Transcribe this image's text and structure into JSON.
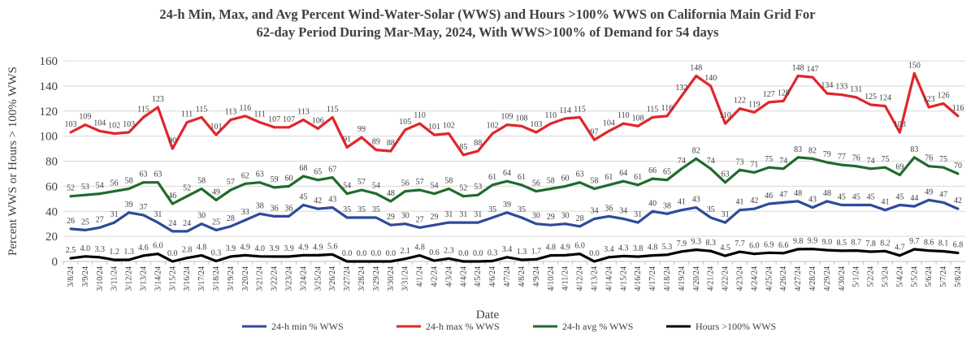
{
  "chart_data": {
    "type": "line",
    "title_line1": "24-h Min, Max, and Avg Percent Wind-Water-Solar (WWS) and Hours >100% WWS on California Main Grid For",
    "title_line2": "62-day Period During Mar-May, 2024, With WWS>100% of Demand for 54 days",
    "xlabel": "Date",
    "ylabel": "Percent WWS or Hours > 100% WWS",
    "ylim": [
      0,
      160
    ],
    "yticks": [
      "0",
      "20",
      "40",
      "60",
      "80",
      "100",
      "120",
      "140",
      "160"
    ],
    "grid": true,
    "legend_position": "bottom",
    "categories": [
      "3/8/24",
      "3/9/24",
      "3/10/24",
      "3/11/24",
      "3/12/24",
      "3/13/24",
      "3/14/24",
      "3/15/24",
      "3/16/24",
      "3/17/24",
      "3/18/24",
      "3/19/24",
      "3/20/24",
      "3/21/24",
      "3/22/24",
      "3/23/24",
      "3/24/24",
      "3/25/24",
      "3/26/24",
      "3/27/24",
      "3/28/24",
      "3/29/24",
      "3/30/24",
      "3/31/24",
      "4/1/24",
      "4/2/24",
      "4/3/24",
      "4/4/24",
      "4/5/24",
      "4/6/24",
      "4/7/24",
      "4/8/24",
      "4/9/24",
      "4/10/24",
      "4/11/24",
      "4/12/24",
      "4/13/24",
      "4/14/24",
      "4/15/24",
      "4/16/24",
      "4/17/24",
      "4/18/24",
      "4/19/24",
      "4/20/24",
      "4/21/24",
      "4/22/24",
      "4/23/24",
      "4/24/24",
      "4/25/24",
      "4/26/24",
      "4/27/24",
      "4/28/24",
      "4/29/24",
      "4/30/24",
      "5/1/24",
      "5/2/24",
      "5/3/24",
      "5/4/24",
      "5/5/24",
      "5/6/24",
      "5/7/24",
      "5/8/24"
    ],
    "series": [
      {
        "name": "24-h min % WWS",
        "color": "#2f4a9a",
        "values": [
          26,
          25,
          27,
          31,
          39,
          37,
          31,
          24,
          24,
          30,
          25,
          28,
          33,
          38,
          36,
          36,
          45,
          42,
          43,
          35,
          35,
          35,
          29,
          30,
          27,
          29,
          31,
          31,
          31,
          35,
          39,
          35,
          30,
          29,
          30,
          28,
          34,
          36,
          34,
          31,
          40,
          38,
          41,
          43,
          35,
          31,
          41,
          42,
          46,
          47,
          48,
          43,
          48,
          45,
          45,
          45,
          41,
          45,
          44,
          49,
          47,
          42
        ],
        "labels": [
          "26",
          "25",
          "27",
          "31",
          "39",
          "37",
          "31",
          "24",
          "24",
          "30",
          "25",
          "28",
          "33",
          "38",
          "36",
          "36",
          "45",
          "42",
          "43",
          "35",
          "35",
          "35",
          "29",
          "30",
          "27",
          "29",
          "31",
          "31",
          "31",
          "35",
          "39",
          "35",
          "30",
          "29",
          "30",
          "28",
          "34",
          "36",
          "34",
          "31",
          "40",
          "38",
          "41",
          "43",
          "35",
          "31",
          "41",
          "42",
          "46",
          "47",
          "48",
          "43",
          "48",
          "45",
          "45",
          "45",
          "41",
          "45",
          "44",
          "49",
          "47",
          "42"
        ]
      },
      {
        "name": "24-h max % WWS",
        "color": "#e0262b",
        "values": [
          103,
          109,
          104,
          102,
          103,
          115,
          123,
          90,
          111,
          115,
          101,
          113,
          116,
          111,
          107,
          107,
          113,
          106,
          115,
          91,
          99,
          89,
          88,
          105,
          110,
          101,
          102,
          85,
          88,
          102,
          109,
          108,
          103,
          110,
          114,
          115,
          97,
          104,
          110,
          108,
          115,
          116,
          132,
          148,
          140,
          110,
          122,
          119,
          127,
          128,
          148,
          147,
          134,
          133,
          131,
          125,
          124,
          103,
          150,
          123,
          126,
          116
        ],
        "labels": [
          "103",
          "109",
          "104",
          "102",
          "103",
          "115",
          "123",
          "90",
          "111",
          "115",
          "101",
          "113",
          "116",
          "111",
          "107",
          "107",
          "113",
          "106",
          "115",
          "91",
          "99",
          "89",
          "88",
          "105",
          "110",
          "101",
          "102",
          "85",
          "88",
          "102",
          "109",
          "108",
          "103",
          "110",
          "114",
          "115",
          "97",
          "104",
          "110",
          "108",
          "115",
          "116",
          "132",
          "148",
          "140",
          "110",
          "122",
          "119",
          "127",
          "128",
          "148",
          "147",
          "134",
          "133",
          "131",
          "125",
          "124",
          "103",
          "150",
          "123",
          "126",
          "116"
        ]
      },
      {
        "name": "24-h avg % WWS",
        "color": "#1f6b2d",
        "values": [
          52,
          53,
          54,
          56,
          58,
          63,
          63,
          46,
          52,
          58,
          49,
          57,
          62,
          63,
          59,
          60,
          68,
          65,
          67,
          54,
          57,
          54,
          48,
          56,
          57,
          54,
          58,
          52,
          53,
          61,
          64,
          61,
          56,
          58,
          60,
          63,
          58,
          61,
          64,
          61,
          66,
          65,
          74,
          82,
          74,
          63,
          73,
          71,
          75,
          74,
          83,
          82,
          79,
          77,
          76,
          74,
          75,
          69,
          83,
          76,
          75,
          70
        ],
        "labels": [
          "52",
          "53",
          "54",
          "56",
          "58",
          "63",
          "63",
          "46",
          "52",
          "58",
          "49",
          "57",
          "62",
          "63",
          "59",
          "60",
          "68",
          "65",
          "67",
          "54",
          "57",
          "54",
          "48",
          "56",
          "57",
          "54",
          "58",
          "52",
          "53",
          "61",
          "64",
          "61",
          "56",
          "58",
          "60",
          "63",
          "58",
          "61",
          "64",
          "61",
          "66",
          "65",
          "74",
          "82",
          "74",
          "63",
          "73",
          "71",
          "75",
          "74",
          "83",
          "82",
          "79",
          "77",
          "76",
          "74",
          "75",
          "69",
          "83",
          "76",
          "75",
          "70"
        ]
      },
      {
        "name": "Hours >100% WWS",
        "color": "#000000",
        "values": [
          2.5,
          4.0,
          3.3,
          1.2,
          1.3,
          4.6,
          6.0,
          0.0,
          2.8,
          4.8,
          0.3,
          3.9,
          4.9,
          4.0,
          3.9,
          3.9,
          4.9,
          4.9,
          5.6,
          0.0,
          0.0,
          0.0,
          0.0,
          2.1,
          4.8,
          0.6,
          2.3,
          0.0,
          0.0,
          0.3,
          3.4,
          1.3,
          1.7,
          4.8,
          4.9,
          6.0,
          0.0,
          3.4,
          4.3,
          3.8,
          4.8,
          5.3,
          7.9,
          9.3,
          8.3,
          4.5,
          7.7,
          6.0,
          6.9,
          6.6,
          9.8,
          9.9,
          9.0,
          8.5,
          8.7,
          7.8,
          8.2,
          4.7,
          9.7,
          8.6,
          8.1,
          6.8
        ],
        "labels": [
          "2.5",
          "4.0",
          "3.3",
          "1.2",
          "1.3",
          "4.6",
          "6.0",
          "0.0",
          "2.8",
          "4.8",
          "0.3",
          "3.9",
          "4.9",
          "4.0",
          "3.9",
          "3.9",
          "4.9",
          "4.9",
          "5.6",
          "0.0",
          "0.0",
          "0.0",
          "0.0",
          "2.1",
          "4.8",
          "0.6",
          "2.3",
          "0.0",
          "0.0",
          "0.3",
          "3.4",
          "1.3",
          "1.7",
          "4.8",
          "4.9",
          "6.0",
          "0.0",
          "3.4",
          "4.3",
          "3.8",
          "4.8",
          "5.3",
          "7.9",
          "9.3",
          "8.3",
          "4.5",
          "7.7",
          "6.0",
          "6.9",
          "6.6",
          "9.8",
          "9.9",
          "9.0",
          "8.5",
          "8.7",
          "7.8",
          "8.2",
          "4.7",
          "9.7",
          "8.6",
          "8.1",
          "6.8"
        ]
      }
    ]
  }
}
